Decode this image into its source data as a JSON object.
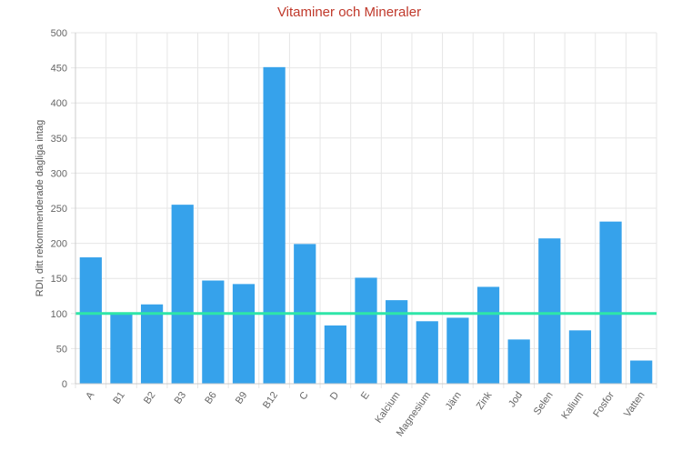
{
  "chart_data": {
    "type": "bar",
    "title": "Vitaminer och Mineraler",
    "xlabel": "",
    "ylabel": "RDI, ditt rekommenderade dagliga intag",
    "categories": [
      "A",
      "B1",
      "B2",
      "B3",
      "B6",
      "B9",
      "B12",
      "C",
      "D",
      "E",
      "Kalcium",
      "Magnesium",
      "Järn",
      "Zink",
      "Jod",
      "Selen",
      "Kalium",
      "Fosfor",
      "Vatten"
    ],
    "values": [
      180,
      101,
      113,
      255,
      147,
      142,
      451,
      199,
      83,
      151,
      119,
      89,
      94,
      138,
      63,
      207,
      76,
      231,
      33
    ],
    "ylim": [
      0,
      500
    ],
    "yticks": [
      0,
      50,
      100,
      150,
      200,
      250,
      300,
      350,
      400,
      450,
      500
    ],
    "reference_line": 100,
    "grid": true,
    "colors": {
      "bar": "#36a2eb",
      "reference_line": "#2ee6a8",
      "title": "#c0392b"
    }
  }
}
